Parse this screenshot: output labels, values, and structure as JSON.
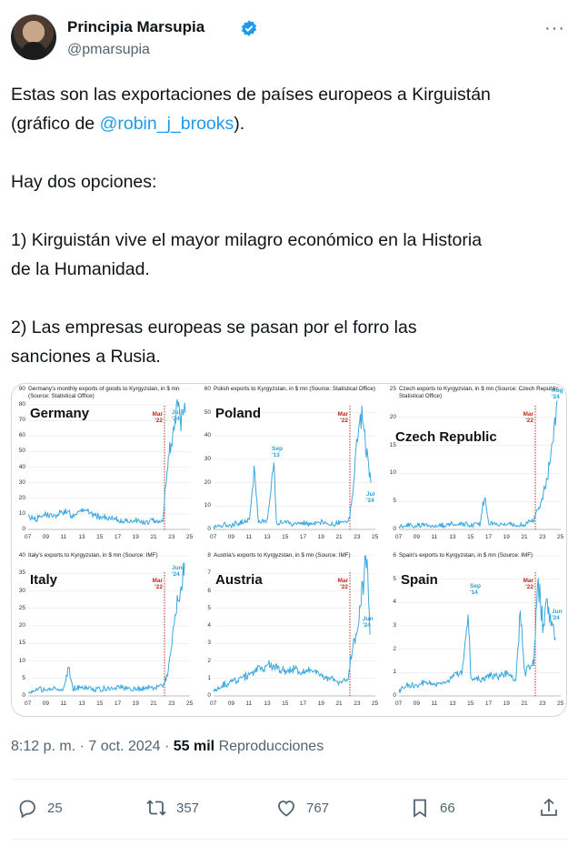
{
  "author": {
    "name": "Principia Marsupia",
    "handle": "@pmarsupia"
  },
  "tweet": {
    "line1_a": "Estas son las exportaciones de países europeos a Kirguistán",
    "line2_a": "(gráfico de ",
    "mention": "@robin_j_brooks",
    "line2_b": ").",
    "para2": "Hay dos opciones:",
    "para3_l1": "1) Kirguistán vive el mayor milagro económico en la Historia",
    "para3_l2": "de la Humanidad.",
    "para4_l1": "2) Las empresas europeas se pasan por el forro las",
    "para4_l2": "sanciones a Rusia."
  },
  "meta": {
    "time": "8:12 p. m. · 7 oct. 2024 · ",
    "views_count": "55 mil",
    "views_label": " Reproducciones"
  },
  "actions": {
    "replies": "25",
    "reposts": "357",
    "likes": "767",
    "bookmarks": "66"
  },
  "colors": {
    "accent": "#1d9bf0",
    "series": "#3aa8e0",
    "marker": "#c0281e"
  },
  "chart_data": [
    {
      "type": "line",
      "country": "Germany",
      "title": "Germany's monthly exports of goods to Kyrgyzstan, in $ mn (Source: Statistical Office)",
      "ylim": [
        0,
        90
      ],
      "yticks": [
        "0",
        "10",
        "20",
        "30",
        "40",
        "50",
        "60",
        "70",
        "80",
        "90"
      ],
      "xticks": [
        "07",
        "09",
        "11",
        "13",
        "15",
        "17",
        "19",
        "21",
        "23",
        "25"
      ],
      "marker_label": [
        "Mar",
        "'22"
      ],
      "annotation": [
        "Jul",
        "'24"
      ],
      "x": [
        2007,
        2008,
        2009,
        2010,
        2011,
        2012,
        2013,
        2014,
        2015,
        2016,
        2017,
        2018,
        2019,
        2020,
        2021,
        2022,
        2022.3,
        2022.6,
        2023,
        2023.5,
        2024,
        2024.5
      ],
      "values": [
        8,
        7,
        10,
        8,
        12,
        9,
        14,
        10,
        8,
        7,
        6,
        5,
        6,
        4,
        6,
        5,
        30,
        45,
        60,
        78,
        72,
        75
      ]
    },
    {
      "type": "line",
      "country": "Poland",
      "title": "Polish exports to Kyrgyzstan, in $ mn (Source: Statistical Office)",
      "ylim": [
        0,
        60
      ],
      "yticks": [
        "0",
        "10",
        "20",
        "30",
        "40",
        "50",
        "60"
      ],
      "xticks": [
        "07",
        "09",
        "11",
        "13",
        "15",
        "17",
        "19",
        "21",
        "23",
        "25"
      ],
      "marker_label": [
        "Mar",
        "'22"
      ],
      "annotation": [
        "Sep",
        "'13"
      ],
      "annotation2": [
        "Jul",
        "'24"
      ],
      "x": [
        2007,
        2008,
        2009,
        2010,
        2011,
        2011.5,
        2012,
        2013,
        2013.7,
        2014,
        2015,
        2016,
        2017,
        2018,
        2019,
        2020,
        2021,
        2022,
        2022.5,
        2023,
        2023.5,
        2024,
        2024.5
      ],
      "values": [
        1,
        2,
        2,
        3,
        4,
        26,
        3,
        4,
        29,
        3,
        3,
        2,
        3,
        2,
        3,
        2,
        3,
        3,
        14,
        40,
        50,
        35,
        20
      ]
    },
    {
      "type": "line",
      "country": "Czech Republic",
      "title": "Czech exports to Kyrgyzstan, in $ mn (Source: Czech Republic Statistical Office)",
      "ylim": [
        0,
        25
      ],
      "yticks": [
        "0",
        "5",
        "10",
        "15",
        "20",
        "25"
      ],
      "xticks": [
        "07",
        "09",
        "11",
        "13",
        "15",
        "17",
        "19",
        "21",
        "23",
        "25"
      ],
      "marker_label": [
        "Mar",
        "'22"
      ],
      "annotation": [
        "Aug",
        "'24"
      ],
      "x": [
        2007,
        2008,
        2009,
        2010,
        2011,
        2012,
        2013,
        2014,
        2015,
        2016,
        2016.5,
        2017,
        2018,
        2019,
        2020,
        2021,
        2022,
        2022.5,
        2023,
        2023.5,
        2024,
        2024.6
      ],
      "values": [
        0.5,
        0.8,
        0.6,
        0.9,
        0.7,
        0.8,
        1,
        0.9,
        0.8,
        1,
        6,
        1,
        0.9,
        1,
        0.8,
        1,
        1.5,
        4,
        6,
        9,
        14,
        23
      ]
    },
    {
      "type": "line",
      "country": "Italy",
      "title": "Italy's exports to Kyrgyzstan, in $ mn (Source: IMF)",
      "ylim": [
        0,
        40
      ],
      "yticks": [
        "0",
        "5",
        "10",
        "15",
        "20",
        "25",
        "30",
        "35",
        "40"
      ],
      "xticks": [
        "07",
        "09",
        "11",
        "13",
        "15",
        "17",
        "19",
        "21",
        "23",
        "25"
      ],
      "marker_label": [
        "Mar",
        "'22"
      ],
      "annotation": [
        "Jun",
        "'24"
      ],
      "x": [
        2007,
        2008,
        2009,
        2010,
        2011,
        2011.5,
        2012,
        2013,
        2014,
        2015,
        2016,
        2017,
        2018,
        2019,
        2020,
        2021,
        2022,
        2022.5,
        2023,
        2023.5,
        2024,
        2024.4
      ],
      "values": [
        1,
        2,
        1.5,
        2,
        2,
        8,
        2,
        2.5,
        2,
        2,
        2,
        2.5,
        2,
        2,
        2,
        2.5,
        3,
        6,
        15,
        25,
        32,
        38
      ]
    },
    {
      "type": "line",
      "country": "Austria",
      "title": "Austria's exports to Kyrgyzstan, in $ mn (Source: IMF)",
      "ylim": [
        0,
        8
      ],
      "yticks": [
        "0",
        "1",
        "2",
        "3",
        "4",
        "5",
        "6",
        "7",
        "8"
      ],
      "xticks": [
        "07",
        "09",
        "11",
        "13",
        "15",
        "17",
        "19",
        "21",
        "23",
        "25"
      ],
      "marker_label": [
        "Mar",
        "'22"
      ],
      "annotation": [
        "Jun",
        "'24"
      ],
      "x": [
        2007,
        2008,
        2009,
        2010,
        2011,
        2012,
        2013,
        2014,
        2015,
        2016,
        2017,
        2018,
        2019,
        2020,
        2021,
        2022,
        2022.5,
        2023,
        2023.5,
        2024,
        2024.4
      ],
      "values": [
        0.3,
        0.6,
        0.8,
        1,
        1.2,
        1.5,
        1.8,
        1.6,
        1.4,
        1.5,
        1.3,
        1.5,
        1.2,
        1,
        0.8,
        1,
        3,
        4,
        6,
        8,
        3.5
      ]
    },
    {
      "type": "line",
      "country": "Spain",
      "title": "Spain's exports to Kyrgyzstan, in $ mn (Source: IMF)",
      "ylim": [
        0,
        6
      ],
      "yticks": [
        "0",
        "1",
        "2",
        "3",
        "4",
        "5",
        "6"
      ],
      "xticks": [
        "07",
        "09",
        "11",
        "13",
        "15",
        "17",
        "19",
        "21",
        "23",
        "25"
      ],
      "marker_label": [
        "Mar",
        "'22"
      ],
      "annotation": [
        "Sep",
        "'14"
      ],
      "annotation2": [
        "Jun",
        "'24"
      ],
      "x": [
        2007,
        2008,
        2009,
        2010,
        2011,
        2012,
        2013,
        2014,
        2014.7,
        2015,
        2016,
        2017,
        2018,
        2019,
        2020,
        2020.5,
        2021,
        2022,
        2022.5,
        2023,
        2023.5,
        2024,
        2024.4
      ],
      "values": [
        0.2,
        0.5,
        0.4,
        0.6,
        0.5,
        0.6,
        0.8,
        1,
        3.8,
        0.8,
        0.7,
        0.9,
        0.8,
        1,
        0.6,
        3.7,
        1,
        1.5,
        5,
        3,
        4,
        3,
        2.5
      ]
    }
  ]
}
